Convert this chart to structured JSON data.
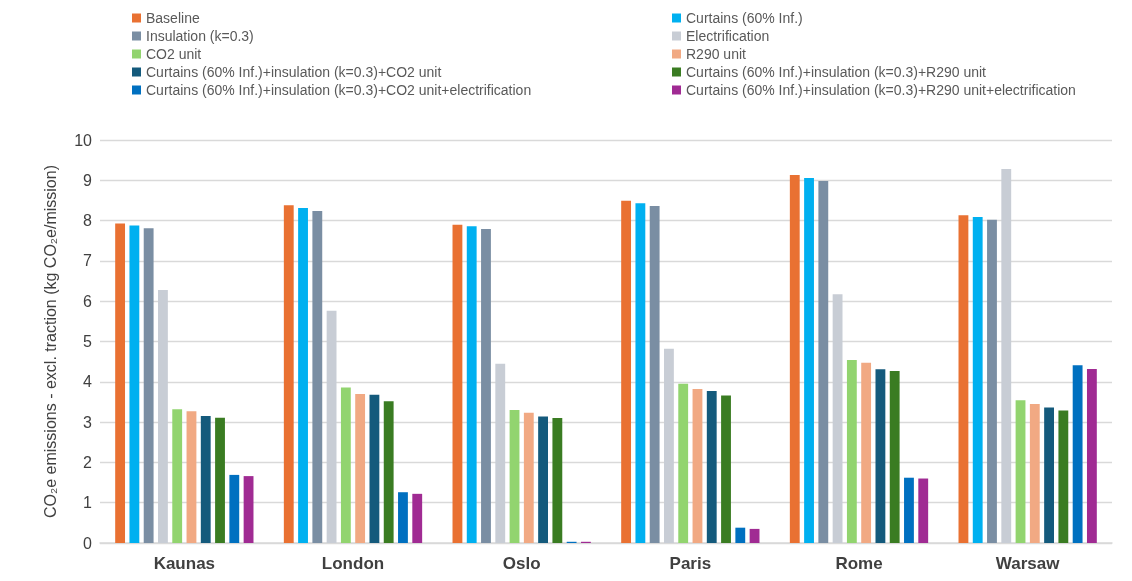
{
  "chart_data": {
    "type": "bar",
    "ylabel": "CO₂e emissions - excl. traction (kg CO₂e/mission)",
    "categories": [
      "Kaunas",
      "London",
      "Oslo",
      "Paris",
      "Rome",
      "Warsaw"
    ],
    "ylim": [
      0,
      10
    ],
    "yticks": [
      0,
      1,
      2,
      3,
      4,
      5,
      6,
      7,
      8,
      9,
      10
    ],
    "grid": "y",
    "legend": "top",
    "series": [
      {
        "name": "Baseline",
        "color": "#e97132",
        "values": [
          7.93,
          8.38,
          7.9,
          8.49,
          9.13,
          8.13
        ]
      },
      {
        "name": "Curtains (60% Inf.)",
        "color": "#00b0f0",
        "values": [
          7.88,
          8.31,
          7.86,
          8.43,
          9.06,
          8.09
        ]
      },
      {
        "name": "Insulation (k=0.3)",
        "color": "#7a8ea3",
        "values": [
          7.81,
          8.24,
          7.79,
          8.36,
          8.98,
          8.02
        ]
      },
      {
        "name": "Electrification",
        "color": "#c8cdd5",
        "values": [
          6.28,
          5.76,
          4.45,
          4.82,
          6.17,
          9.28
        ]
      },
      {
        "name": "CO2 unit",
        "color": "#92d46f",
        "values": [
          3.32,
          3.86,
          3.3,
          3.95,
          4.54,
          3.54
        ]
      },
      {
        "name": "R290 unit",
        "color": "#f1a983",
        "values": [
          3.27,
          3.7,
          3.23,
          3.82,
          4.47,
          3.45
        ]
      },
      {
        "name": "Curtains (60% Inf.)+insulation (k=0.3)+CO2 unit",
        "color": "#145a7c",
        "values": [
          3.15,
          3.68,
          3.14,
          3.77,
          4.31,
          3.36
        ]
      },
      {
        "name": "Curtains (60% Inf.)+insulation (k=0.3)+R290 unit",
        "color": "#3a7c22",
        "values": [
          3.11,
          3.52,
          3.1,
          3.66,
          4.27,
          3.29
        ]
      },
      {
        "name": "Curtains (60% Inf.)+insulation (k=0.3)+CO2 unit+electrification",
        "color": "#0070c0",
        "values": [
          1.69,
          1.26,
          0.03,
          0.38,
          1.62,
          4.41
        ]
      },
      {
        "name": "Curtains (60% Inf.)+insulation (k=0.3)+R290 unit+electrification",
        "color": "#a02b93",
        "values": [
          1.66,
          1.22,
          0.03,
          0.35,
          1.6,
          4.32
        ]
      }
    ]
  }
}
